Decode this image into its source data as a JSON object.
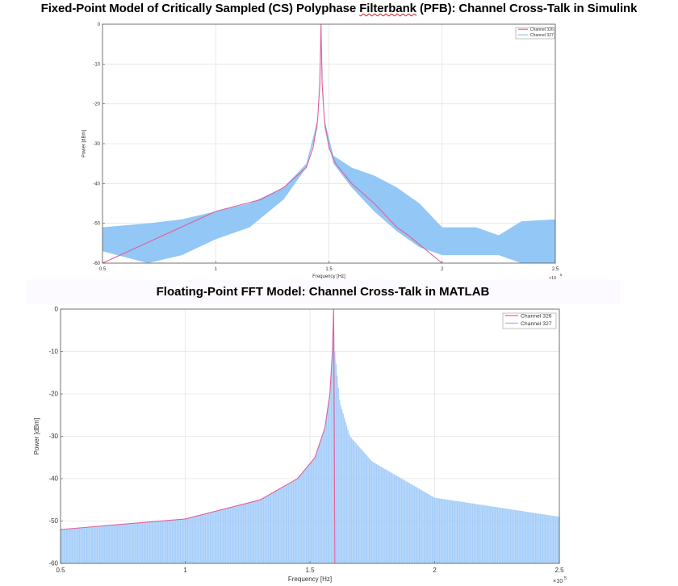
{
  "titles": {
    "top_prefix": "Fixed-Point Model of Critically Sampled (CS) Polyphase ",
    "top_misspelled": "Filterbank",
    "top_suffix": " (PFB): Channel Cross-Talk in Simulink",
    "bottom": "Floating-Point FFT Model: Channel Cross-Talk in MATLAB"
  },
  "colors": {
    "channel_326": "#e0609a",
    "channel_327": "#8cc4f6",
    "channel_327_bottom": "#9cc8f8",
    "grid": "#e4e4e4",
    "axis": "#555555"
  },
  "chart_data": [
    {
      "type": "line",
      "xlabel": "Frequency [Hz]",
      "ylabel": "Power [dBm]",
      "xlim": [
        50000,
        250000
      ],
      "ylim": [
        -60,
        0
      ],
      "x_exponent_label": "×10",
      "x_exponent_power": "5",
      "x_ticks": [
        0.5,
        1,
        1.5,
        2,
        2.5
      ],
      "y_ticks": [
        0,
        -10,
        -20,
        -30,
        -40,
        -50,
        -60
      ],
      "grid": true,
      "legend_position": "top-right",
      "legend": [
        "Channel 326",
        "Channel 327"
      ],
      "series": [
        {
          "name": "Channel 326",
          "x": [
            50000,
            100000,
            120000,
            130000,
            140000,
            143000,
            145000,
            146000,
            146500,
            147000,
            148000,
            150000,
            153000,
            160000,
            170000,
            180000,
            185000,
            200000
          ],
          "values": [
            -60,
            -47,
            -44,
            -41,
            -36,
            -31,
            -24,
            -15,
            0,
            -15,
            -24,
            -31,
            -35,
            -40,
            -45,
            -51,
            -53,
            -60
          ]
        },
        {
          "name": "Channel 327",
          "x": [
            50000,
            70000,
            85000,
            100000,
            115000,
            130000,
            140000,
            145000,
            146500,
            148000,
            152000,
            160000,
            170000,
            180000,
            190000,
            200000,
            215000,
            225000,
            235000,
            250000
          ],
          "upper": [
            -51,
            -50,
            -49,
            -47,
            -45,
            -41,
            -35,
            -24,
            0,
            -24,
            -33,
            -36,
            -38,
            -41,
            -45,
            -51,
            -51,
            -53,
            -49.5,
            -49
          ],
          "lower": [
            -57,
            -60,
            -58,
            -54,
            -51,
            -44,
            -36,
            -26,
            0,
            -26,
            -35,
            -41,
            -47,
            -52,
            -56,
            -58,
            -58,
            -58,
            -60,
            -60
          ]
        }
      ]
    },
    {
      "type": "line",
      "title": "Floating-Point FFT Model: Channel Cross-Talk in MATLAB",
      "xlabel": "Frequency [Hz]",
      "ylabel": "Power [dBm]",
      "xlim": [
        50000,
        250000
      ],
      "ylim": [
        -60,
        0
      ],
      "x_exponent_label": "×10",
      "x_exponent_power": "5",
      "x_ticks": [
        0.5,
        1,
        1.5,
        2,
        2.5
      ],
      "y_ticks": [
        0,
        -10,
        -20,
        -30,
        -40,
        -50,
        -60
      ],
      "grid": true,
      "legend_position": "top-right",
      "legend": [
        "Channel 326",
        "Channel 327"
      ],
      "series": [
        {
          "name": "Channel 326",
          "x": [
            50000,
            100000,
            130000,
            145000,
            152000,
            156000,
            158000,
            159000,
            159500,
            160000
          ],
          "values": [
            -52,
            -49.5,
            -45,
            -40,
            -35,
            -28,
            -20,
            -10,
            0,
            -60
          ]
        },
        {
          "name": "Channel 327",
          "x": [
            50000,
            100000,
            130000,
            145000,
            152000,
            156000,
            158000,
            159000,
            159500,
            160000,
            162000,
            166000,
            175000,
            200000,
            250000
          ],
          "upper": [
            -52,
            -49.5,
            -45,
            -40,
            -35,
            -28,
            -20,
            -10,
            0,
            -10,
            -22,
            -30,
            -36,
            -44.5,
            -49
          ],
          "lower_trend_min": -60
        }
      ]
    }
  ]
}
